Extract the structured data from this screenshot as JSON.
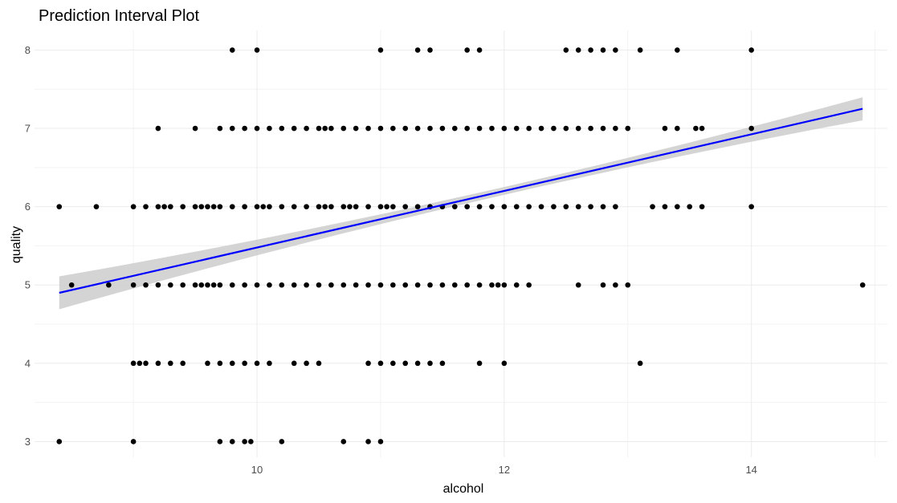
{
  "chart_data": {
    "type": "scatter",
    "title": "Prediction Interval Plot",
    "xlabel": "alcohol",
    "ylabel": "quality",
    "xlim": [
      8.2,
      15.1
    ],
    "ylim": [
      2.8,
      8.25
    ],
    "x_ticks": [
      10,
      12,
      14
    ],
    "x_tick_labels": [
      "10",
      "12",
      "14"
    ],
    "y_ticks": [
      3,
      4,
      5,
      6,
      7,
      8
    ],
    "y_tick_labels": [
      "3",
      "4",
      "5",
      "6",
      "7",
      "8"
    ],
    "grid": true,
    "points": [
      {
        "quality": 8,
        "alcohol": [
          9.8,
          10.0,
          11.0,
          11.3,
          11.4,
          11.7,
          11.8,
          12.5,
          12.6,
          12.7,
          12.8,
          12.9,
          13.1,
          13.4,
          14.0
        ]
      },
      {
        "quality": 7,
        "alcohol": [
          9.2,
          9.5,
          9.7,
          9.8,
          9.9,
          10.0,
          10.1,
          10.2,
          10.3,
          10.4,
          10.5,
          10.55,
          10.6,
          10.7,
          10.8,
          10.9,
          11.0,
          11.1,
          11.2,
          11.3,
          11.4,
          11.5,
          11.6,
          11.7,
          11.8,
          11.9,
          12.0,
          12.1,
          12.2,
          12.3,
          12.4,
          12.5,
          12.6,
          12.7,
          12.8,
          12.9,
          13.0,
          13.3,
          13.4,
          13.55,
          13.6,
          14.0
        ]
      },
      {
        "quality": 6,
        "alcohol": [
          8.4,
          8.7,
          9.0,
          9.1,
          9.2,
          9.25,
          9.3,
          9.4,
          9.5,
          9.55,
          9.6,
          9.65,
          9.7,
          9.8,
          9.9,
          10.0,
          10.05,
          10.1,
          10.2,
          10.3,
          10.4,
          10.5,
          10.55,
          10.6,
          10.7,
          10.75,
          10.8,
          10.9,
          11.0,
          11.05,
          11.1,
          11.2,
          11.3,
          11.4,
          11.5,
          11.6,
          11.7,
          11.8,
          11.9,
          12.0,
          12.1,
          12.2,
          12.3,
          12.4,
          12.5,
          12.6,
          12.7,
          12.8,
          12.9,
          13.2,
          13.3,
          13.4,
          13.5,
          13.6,
          14.0
        ]
      },
      {
        "quality": 5,
        "alcohol": [
          8.5,
          8.8,
          9.0,
          9.1,
          9.2,
          9.3,
          9.4,
          9.5,
          9.55,
          9.6,
          9.65,
          9.7,
          9.8,
          9.9,
          10.0,
          10.1,
          10.2,
          10.3,
          10.4,
          10.5,
          10.6,
          10.7,
          10.8,
          10.9,
          11.0,
          11.1,
          11.2,
          11.3,
          11.4,
          11.5,
          11.6,
          11.7,
          11.8,
          11.9,
          11.95,
          12.0,
          12.1,
          12.2,
          12.6,
          12.8,
          12.9,
          13.0,
          14.9
        ]
      },
      {
        "quality": 4,
        "alcohol": [
          9.0,
          9.05,
          9.1,
          9.2,
          9.3,
          9.4,
          9.6,
          9.7,
          9.8,
          9.9,
          10.0,
          10.1,
          10.3,
          10.4,
          10.5,
          10.9,
          11.0,
          11.1,
          11.2,
          11.3,
          11.4,
          11.5,
          11.8,
          12.0,
          13.1
        ]
      },
      {
        "quality": 3,
        "alcohol": [
          8.4,
          9.0,
          9.7,
          9.8,
          9.9,
          9.95,
          10.2,
          10.7,
          10.9,
          11.0
        ]
      }
    ],
    "fit": {
      "type": "linear",
      "x_range": [
        8.4,
        14.9
      ],
      "y_at_start": 4.9,
      "y_at_end": 7.25,
      "line_color": "#0000ff",
      "band_color": "#cccccc"
    },
    "point_color": "#000000"
  }
}
